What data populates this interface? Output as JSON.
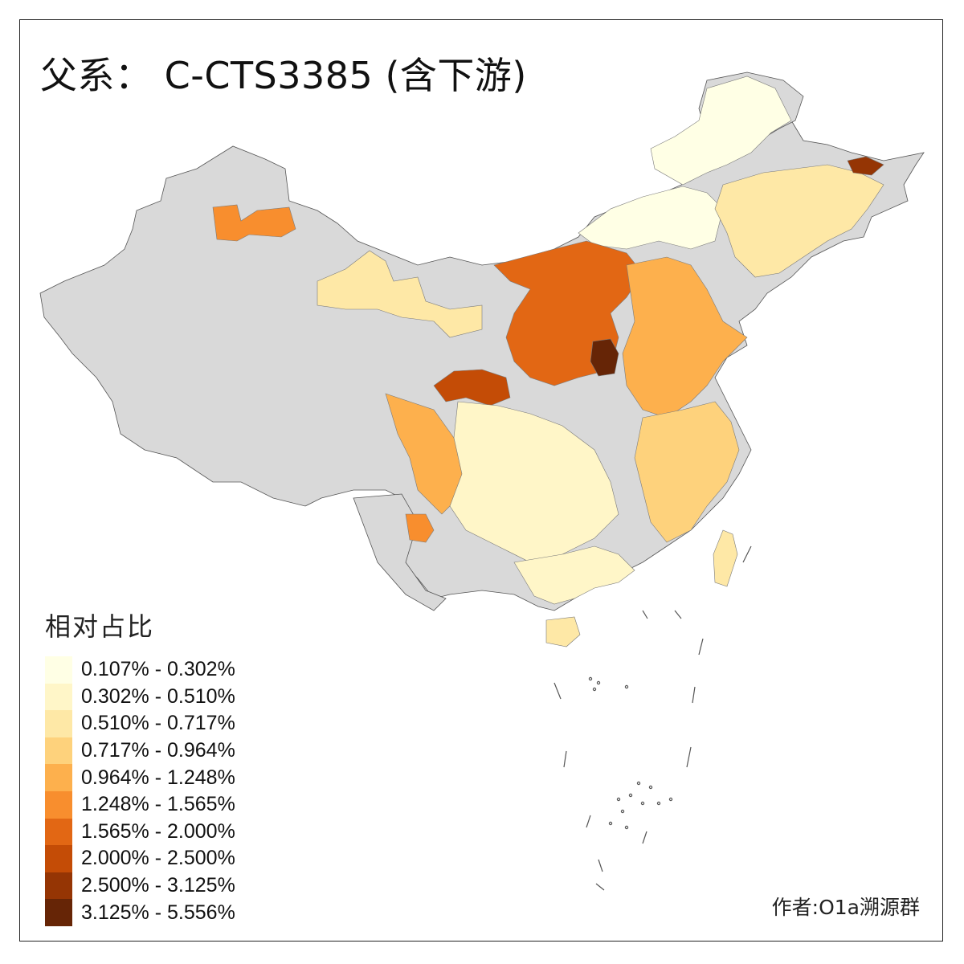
{
  "map": {
    "title": "父系： C-CTS3385 (含下游)",
    "credit": "作者:O1a溯源群",
    "no_data_color": "#d9d9d9",
    "legend": {
      "title": "相对占比",
      "classes": [
        {
          "label": "0.107% - 0.302%",
          "color": "#ffffe5"
        },
        {
          "label": "0.302% - 0.510%",
          "color": "#fff6c8"
        },
        {
          "label": "0.510% - 0.717%",
          "color": "#fee8a6"
        },
        {
          "label": "0.717% - 0.964%",
          "color": "#fed27c"
        },
        {
          "label": "0.964% - 1.248%",
          "color": "#fdb04d"
        },
        {
          "label": "1.248% - 1.565%",
          "color": "#f88e2e"
        },
        {
          "label": "1.565% - 2.000%",
          "color": "#e26714"
        },
        {
          "label": "2.000% - 2.500%",
          "color": "#c44c06"
        },
        {
          "label": "2.500% - 3.125%",
          "color": "#953504"
        },
        {
          "label": "3.125% - 5.556%",
          "color": "#662506"
        }
      ]
    },
    "regions": [
      {
        "name": "northeast-north",
        "class": 0
      },
      {
        "name": "inner-mongolia-central",
        "class": 0
      },
      {
        "name": "north-xinjiang-spot",
        "class": 5
      },
      {
        "name": "qinghai-gansu-north",
        "class": 2
      },
      {
        "name": "loess-plateau",
        "class": 6
      },
      {
        "name": "shanxi-core",
        "class": 9
      },
      {
        "name": "north-china-plain",
        "class": 4
      },
      {
        "name": "liaoning-jilin",
        "class": 2
      },
      {
        "name": "heilongjiang-east",
        "class": 8
      },
      {
        "name": "gansu-qinghai-south",
        "class": 7
      },
      {
        "name": "sichuan-west",
        "class": 4
      },
      {
        "name": "sichuan-yunnan",
        "class": 1
      },
      {
        "name": "yunnan-spot",
        "class": 5
      },
      {
        "name": "south-china",
        "class": 1
      },
      {
        "name": "east-coast",
        "class": 3
      },
      {
        "name": "taiwan",
        "class": 2
      },
      {
        "name": "hainan",
        "class": 2
      }
    ]
  }
}
